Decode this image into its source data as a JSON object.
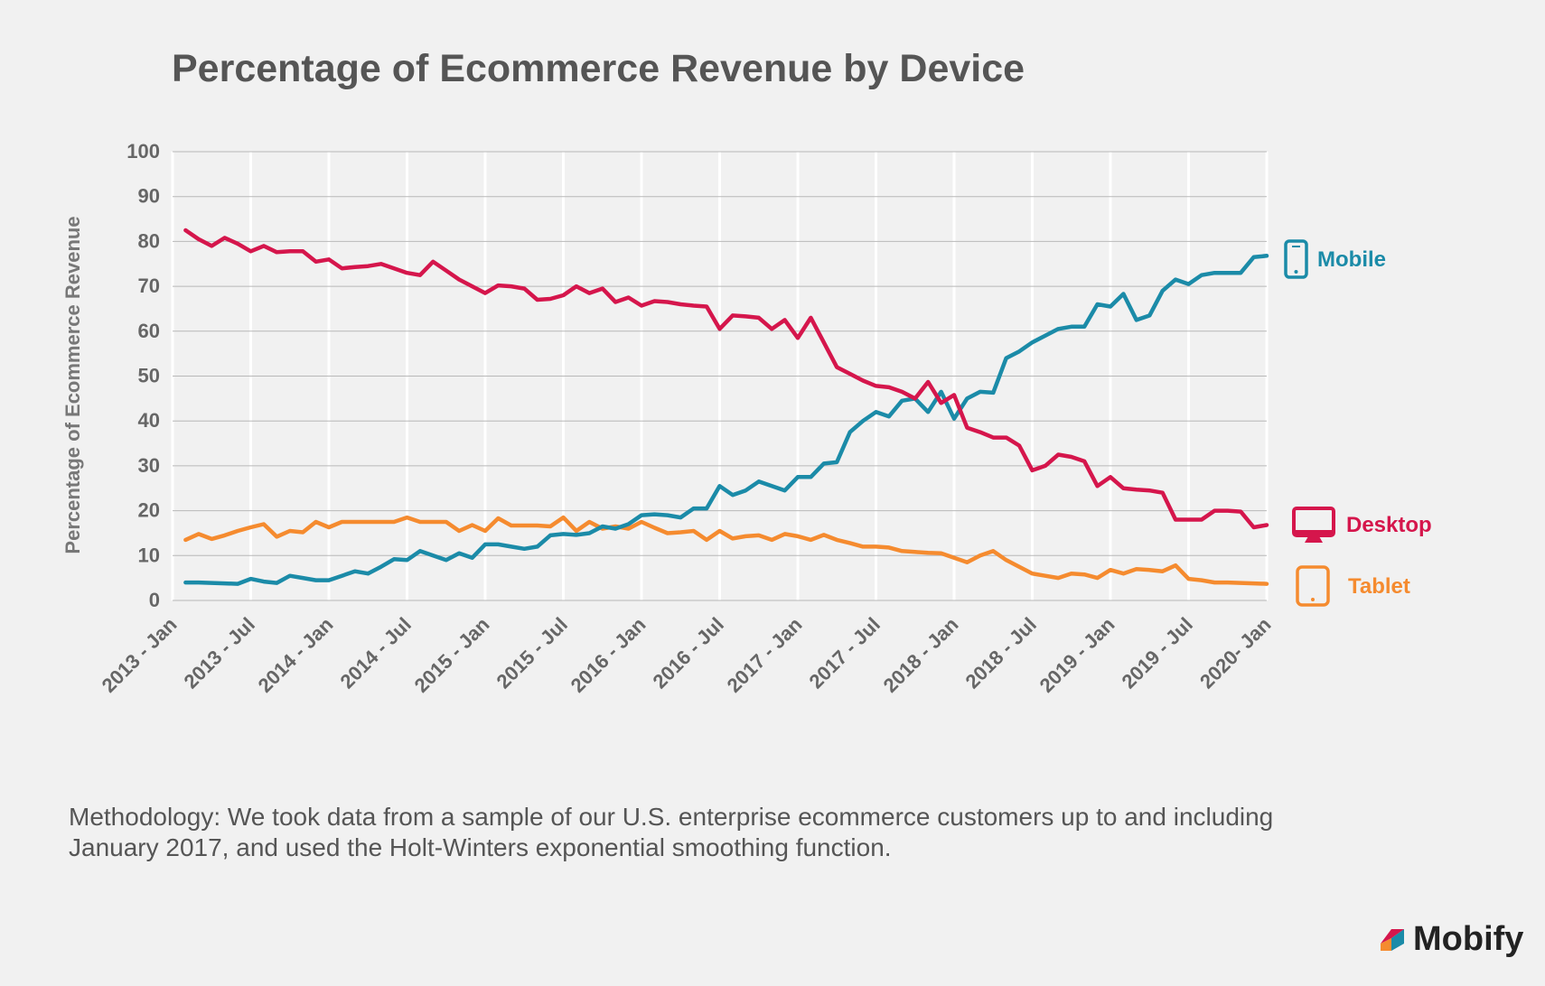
{
  "title": "Percentage of Ecommerce Revenue by Device",
  "methodology": "Methodology: We took data from a sample of our U.S. enterprise ecommerce customers up to and including January 2017, and used the Holt-Winters exponential smoothing function.",
  "logo": {
    "text": "Mobify",
    "icon": "mobify-logo-icon"
  },
  "colors": {
    "mobile": "#1b8ba8",
    "desktop": "#d5164c",
    "tablet": "#f58b2f",
    "text": "#555555",
    "grid": "#b8b8b8",
    "background": "#f1f1f1"
  },
  "chart_data": {
    "type": "line",
    "title": "Percentage of Ecommerce Revenue by Device",
    "ylabel": "Percentage of Ecommerce Revenue",
    "xlabel": "",
    "ylim": [
      0,
      100
    ],
    "yticks": [
      0,
      10,
      20,
      30,
      40,
      50,
      60,
      70,
      80,
      90,
      100
    ],
    "xlim": [
      "2013-01",
      "2020-01"
    ],
    "xticks": [
      {
        "date": "2013-01",
        "label": "2013 - Jan"
      },
      {
        "date": "2013-07",
        "label": "2013 - Jul"
      },
      {
        "date": "2014-01",
        "label": "2014 - Jan"
      },
      {
        "date": "2014-07",
        "label": "2014 - Jul"
      },
      {
        "date": "2015-01",
        "label": "2015 - Jan"
      },
      {
        "date": "2015-07",
        "label": "2015 - Jul"
      },
      {
        "date": "2016-01",
        "label": "2016 - Jan"
      },
      {
        "date": "2016-07",
        "label": "2016 - Jul"
      },
      {
        "date": "2017-01",
        "label": "2017 - Jan"
      },
      {
        "date": "2017-07",
        "label": "2017 - Jul"
      },
      {
        "date": "2018-01",
        "label": "2018 - Jan"
      },
      {
        "date": "2018-07",
        "label": "2018 - Jul"
      },
      {
        "date": "2019-01",
        "label": "2019 - Jan"
      },
      {
        "date": "2019-07",
        "label": "2019 - Jul"
      },
      {
        "date": "2020-01",
        "label": "2020- Jan"
      }
    ],
    "grid": "horizontal and vertical",
    "legend": "right, labels at line ends",
    "series": [
      {
        "name": "Mobile",
        "color": "#1b8ba8",
        "icon": "mobile-phone-icon",
        "points": [
          [
            "2013-02",
            4
          ],
          [
            "2013-03",
            4
          ],
          [
            "2013-04",
            3.9
          ],
          [
            "2013-05",
            3.8
          ],
          [
            "2013-06",
            3.7
          ],
          [
            "2013-07",
            4.8
          ],
          [
            "2013-08",
            4.2
          ],
          [
            "2013-09",
            3.9
          ],
          [
            "2013-10",
            5.5
          ],
          [
            "2013-11",
            5
          ],
          [
            "2013-12",
            4.5
          ],
          [
            "2014-01",
            4.5
          ],
          [
            "2014-02",
            5.5
          ],
          [
            "2014-03",
            6.5
          ],
          [
            "2014-04",
            6
          ],
          [
            "2014-05",
            7.5
          ],
          [
            "2014-06",
            9.2
          ],
          [
            "2014-07",
            9
          ],
          [
            "2014-08",
            11
          ],
          [
            "2014-09",
            10
          ],
          [
            "2014-10",
            9
          ],
          [
            "2014-11",
            10.5
          ],
          [
            "2014-12",
            9.5
          ],
          [
            "2015-01",
            12.5
          ],
          [
            "2015-02",
            12.5
          ],
          [
            "2015-03",
            12
          ],
          [
            "2015-04",
            11.5
          ],
          [
            "2015-05",
            12
          ],
          [
            "2015-06",
            14.5
          ],
          [
            "2015-07",
            14.8
          ],
          [
            "2015-08",
            14.6
          ],
          [
            "2015-09",
            15
          ],
          [
            "2015-10",
            16.5
          ],
          [
            "2015-11",
            16
          ],
          [
            "2015-12",
            17
          ],
          [
            "2016-01",
            19
          ],
          [
            "2016-02",
            19.2
          ],
          [
            "2016-03",
            19
          ],
          [
            "2016-04",
            18.5
          ],
          [
            "2016-05",
            20.5
          ],
          [
            "2016-06",
            20.5
          ],
          [
            "2016-07",
            25.5
          ],
          [
            "2016-08",
            23.5
          ],
          [
            "2016-09",
            24.5
          ],
          [
            "2016-10",
            26.5
          ],
          [
            "2016-11",
            25.5
          ],
          [
            "2016-12",
            24.5
          ],
          [
            "2017-01",
            27.5
          ],
          [
            "2017-02",
            27.5
          ],
          [
            "2017-03",
            30.5
          ],
          [
            "2017-04",
            30.8
          ],
          [
            "2017-05",
            37.5
          ],
          [
            "2017-06",
            40
          ],
          [
            "2017-07",
            42
          ],
          [
            "2017-08",
            41
          ],
          [
            "2017-09",
            44.5
          ],
          [
            "2017-10",
            45
          ],
          [
            "2017-11",
            42
          ],
          [
            "2017-12",
            46.5
          ],
          [
            "2018-01",
            40.5
          ],
          [
            "2018-02",
            45
          ],
          [
            "2018-03",
            46.5
          ],
          [
            "2018-04",
            46.3
          ],
          [
            "2018-05",
            54
          ],
          [
            "2018-06",
            55.5
          ],
          [
            "2018-07",
            57.5
          ],
          [
            "2018-08",
            59
          ],
          [
            "2018-09",
            60.5
          ],
          [
            "2018-10",
            61
          ],
          [
            "2018-11",
            61
          ],
          [
            "2018-12",
            66
          ],
          [
            "2019-01",
            65.5
          ],
          [
            "2019-02",
            68.3
          ],
          [
            "2019-03",
            62.5
          ],
          [
            "2019-04",
            63.5
          ],
          [
            "2019-05",
            69
          ],
          [
            "2019-06",
            71.5
          ],
          [
            "2019-07",
            70.5
          ],
          [
            "2019-08",
            72.5
          ],
          [
            "2019-09",
            73
          ],
          [
            "2019-10",
            73
          ],
          [
            "2019-11",
            73
          ],
          [
            "2019-12",
            76.5
          ],
          [
            "2020-01",
            76.8
          ]
        ]
      },
      {
        "name": "Desktop",
        "color": "#d5164c",
        "icon": "desktop-monitor-icon",
        "points": [
          [
            "2013-02",
            82.5
          ],
          [
            "2013-03",
            80.5
          ],
          [
            "2013-04",
            79
          ],
          [
            "2013-05",
            80.8
          ],
          [
            "2013-06",
            79.5
          ],
          [
            "2013-07",
            77.8
          ],
          [
            "2013-08",
            79
          ],
          [
            "2013-09",
            77.6
          ],
          [
            "2013-10",
            77.8
          ],
          [
            "2013-11",
            77.8
          ],
          [
            "2013-12",
            75.5
          ],
          [
            "2014-01",
            76
          ],
          [
            "2014-02",
            74
          ],
          [
            "2014-03",
            74.3
          ],
          [
            "2014-04",
            74.5
          ],
          [
            "2014-05",
            75
          ],
          [
            "2014-06",
            74
          ],
          [
            "2014-07",
            73
          ],
          [
            "2014-08",
            72.5
          ],
          [
            "2014-09",
            75.5
          ],
          [
            "2014-10",
            73.5
          ],
          [
            "2014-11",
            71.5
          ],
          [
            "2014-12",
            70
          ],
          [
            "2015-01",
            68.5
          ],
          [
            "2015-02",
            70.2
          ],
          [
            "2015-03",
            70
          ],
          [
            "2015-04",
            69.5
          ],
          [
            "2015-05",
            67
          ],
          [
            "2015-06",
            67.2
          ],
          [
            "2015-07",
            68
          ],
          [
            "2015-08",
            70
          ],
          [
            "2015-09",
            68.5
          ],
          [
            "2015-10",
            69.5
          ],
          [
            "2015-11",
            66.5
          ],
          [
            "2015-12",
            67.5
          ],
          [
            "2016-01",
            65.7
          ],
          [
            "2016-02",
            66.7
          ],
          [
            "2016-03",
            66.5
          ],
          [
            "2016-04",
            66
          ],
          [
            "2016-05",
            65.7
          ],
          [
            "2016-06",
            65.5
          ],
          [
            "2016-07",
            60.5
          ],
          [
            "2016-08",
            63.5
          ],
          [
            "2016-09",
            63.3
          ],
          [
            "2016-10",
            63
          ],
          [
            "2016-11",
            60.5
          ],
          [
            "2016-12",
            62.5
          ],
          [
            "2017-01",
            58.5
          ],
          [
            "2017-02",
            63
          ],
          [
            "2017-03",
            57.5
          ],
          [
            "2017-04",
            52
          ],
          [
            "2017-05",
            50.5
          ],
          [
            "2017-06",
            49
          ],
          [
            "2017-07",
            47.8
          ],
          [
            "2017-08",
            47.5
          ],
          [
            "2017-09",
            46.5
          ],
          [
            "2017-10",
            45
          ],
          [
            "2017-11",
            48.7
          ],
          [
            "2017-12",
            44
          ],
          [
            "2018-01",
            45.8
          ],
          [
            "2018-02",
            38.5
          ],
          [
            "2018-03",
            37.5
          ],
          [
            "2018-04",
            36.3
          ],
          [
            "2018-05",
            36.3
          ],
          [
            "2018-06",
            34.5
          ],
          [
            "2018-07",
            29
          ],
          [
            "2018-08",
            30
          ],
          [
            "2018-09",
            32.5
          ],
          [
            "2018-10",
            32
          ],
          [
            "2018-11",
            31
          ],
          [
            "2018-12",
            25.5
          ],
          [
            "2019-01",
            27.5
          ],
          [
            "2019-02",
            25
          ],
          [
            "2019-03",
            24.7
          ],
          [
            "2019-04",
            24.5
          ],
          [
            "2019-05",
            24
          ],
          [
            "2019-06",
            18
          ],
          [
            "2019-07",
            18
          ],
          [
            "2019-08",
            18
          ],
          [
            "2019-09",
            20
          ],
          [
            "2019-10",
            20
          ],
          [
            "2019-11",
            19.8
          ],
          [
            "2019-12",
            16.3
          ],
          [
            "2020-01",
            16.8
          ]
        ]
      },
      {
        "name": "Tablet",
        "color": "#f58b2f",
        "icon": "tablet-icon",
        "points": [
          [
            "2013-02",
            13.5
          ],
          [
            "2013-03",
            14.8
          ],
          [
            "2013-04",
            13.7
          ],
          [
            "2013-05",
            14.5
          ],
          [
            "2013-06",
            15.5
          ],
          [
            "2013-07",
            16.3
          ],
          [
            "2013-08",
            17
          ],
          [
            "2013-09",
            14.2
          ],
          [
            "2013-10",
            15.5
          ],
          [
            "2013-11",
            15.2
          ],
          [
            "2013-12",
            17.5
          ],
          [
            "2014-01",
            16.3
          ],
          [
            "2014-02",
            17.5
          ],
          [
            "2014-03",
            17.5
          ],
          [
            "2014-04",
            17.5
          ],
          [
            "2014-05",
            17.5
          ],
          [
            "2014-06",
            17.5
          ],
          [
            "2014-07",
            18.5
          ],
          [
            "2014-08",
            17.5
          ],
          [
            "2014-09",
            17.5
          ],
          [
            "2014-10",
            17.5
          ],
          [
            "2014-11",
            15.5
          ],
          [
            "2014-12",
            16.8
          ],
          [
            "2015-01",
            15.5
          ],
          [
            "2015-02",
            18.3
          ],
          [
            "2015-03",
            16.7
          ],
          [
            "2015-04",
            16.7
          ],
          [
            "2015-05",
            16.7
          ],
          [
            "2015-06",
            16.5
          ],
          [
            "2015-07",
            18.5
          ],
          [
            "2015-08",
            15.5
          ],
          [
            "2015-09",
            17.5
          ],
          [
            "2015-10",
            16
          ],
          [
            "2015-11",
            16.5
          ],
          [
            "2015-12",
            16
          ],
          [
            "2016-01",
            17.5
          ],
          [
            "2016-02",
            16.2
          ],
          [
            "2016-03",
            15
          ],
          [
            "2016-04",
            15.2
          ],
          [
            "2016-05",
            15.5
          ],
          [
            "2016-06",
            13.5
          ],
          [
            "2016-07",
            15.5
          ],
          [
            "2016-08",
            13.8
          ],
          [
            "2016-09",
            14.3
          ],
          [
            "2016-10",
            14.5
          ],
          [
            "2016-11",
            13.5
          ],
          [
            "2016-12",
            14.8
          ],
          [
            "2017-01",
            14.3
          ],
          [
            "2017-02",
            13.5
          ],
          [
            "2017-03",
            14.6
          ],
          [
            "2017-04",
            13.5
          ],
          [
            "2017-05",
            12.8
          ],
          [
            "2017-06",
            12
          ],
          [
            "2017-07",
            12
          ],
          [
            "2017-08",
            11.8
          ],
          [
            "2017-09",
            11
          ],
          [
            "2017-10",
            10.8
          ],
          [
            "2017-11",
            10.6
          ],
          [
            "2017-12",
            10.5
          ],
          [
            "2018-01",
            9.5
          ],
          [
            "2018-02",
            8.5
          ],
          [
            "2018-03",
            10
          ],
          [
            "2018-04",
            11
          ],
          [
            "2018-05",
            9
          ],
          [
            "2018-06",
            7.5
          ],
          [
            "2018-07",
            6
          ],
          [
            "2018-08",
            5.5
          ],
          [
            "2018-09",
            5
          ],
          [
            "2018-10",
            6
          ],
          [
            "2018-11",
            5.8
          ],
          [
            "2018-12",
            5
          ],
          [
            "2019-01",
            6.8
          ],
          [
            "2019-02",
            6
          ],
          [
            "2019-03",
            7
          ],
          [
            "2019-04",
            6.8
          ],
          [
            "2019-05",
            6.5
          ],
          [
            "2019-06",
            7.8
          ],
          [
            "2019-07",
            4.8
          ],
          [
            "2019-08",
            4.5
          ],
          [
            "2019-09",
            4
          ],
          [
            "2019-10",
            4
          ],
          [
            "2019-11",
            3.9
          ],
          [
            "2019-12",
            3.8
          ],
          [
            "2020-01",
            3.7
          ]
        ]
      }
    ]
  }
}
